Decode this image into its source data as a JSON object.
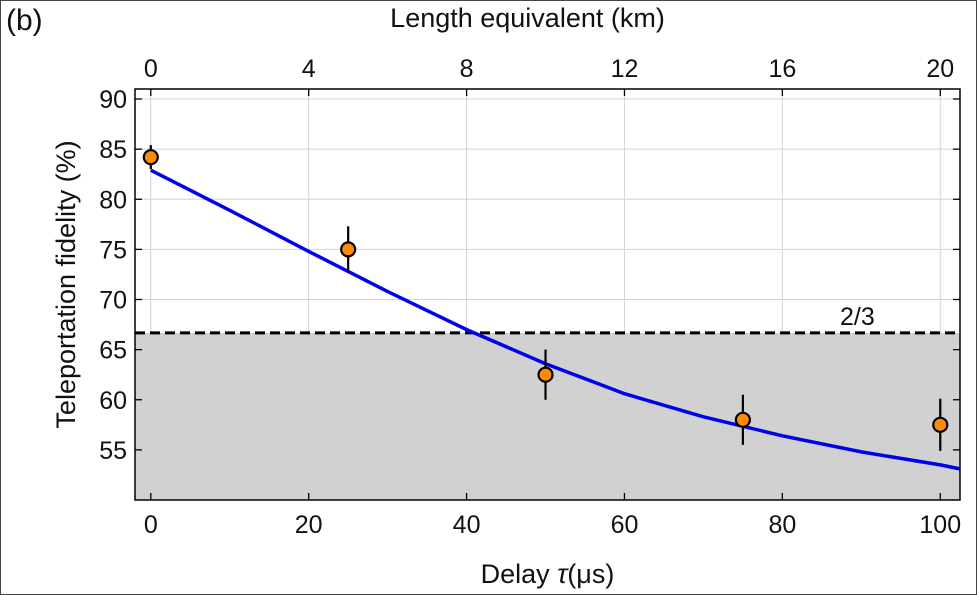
{
  "panel_label": "(b)",
  "chart_data": {
    "type": "scatter",
    "xlabel": "Delay τ(μs)",
    "xlabel_prefix": "Delay ",
    "xlabel_symbol": "τ",
    "xlabel_suffix": "(μs)",
    "ylabel": "Teleportation fidelity (%)",
    "top_xlabel": "Length equivalent (km)",
    "xlim": [
      -2,
      102.5
    ],
    "ylim": [
      50,
      91
    ],
    "xticks": [
      0,
      20,
      40,
      60,
      80,
      100
    ],
    "yticks": [
      55,
      60,
      65,
      70,
      75,
      80,
      85,
      90
    ],
    "top_xticks": [
      0,
      4,
      8,
      12,
      16,
      20
    ],
    "grid": true,
    "points": {
      "x": [
        0,
        25,
        50,
        75,
        100
      ],
      "y": [
        84.2,
        75.0,
        62.5,
        58.0,
        57.5
      ],
      "yerr": [
        1.2,
        2.3,
        2.5,
        2.5,
        2.6
      ],
      "color": "#ff8c00"
    },
    "fit_curve": {
      "x": [
        0,
        10,
        20,
        30,
        40,
        50,
        60,
        70,
        80,
        90,
        100,
        102.5
      ],
      "y": [
        82.9,
        78.9,
        74.8,
        70.8,
        67.0,
        63.6,
        60.6,
        58.3,
        56.4,
        54.8,
        53.5,
        53.1
      ],
      "color": "#0000ee"
    },
    "threshold": {
      "label": "2/3",
      "y": 66.67,
      "region_color": "#cccccc"
    }
  }
}
